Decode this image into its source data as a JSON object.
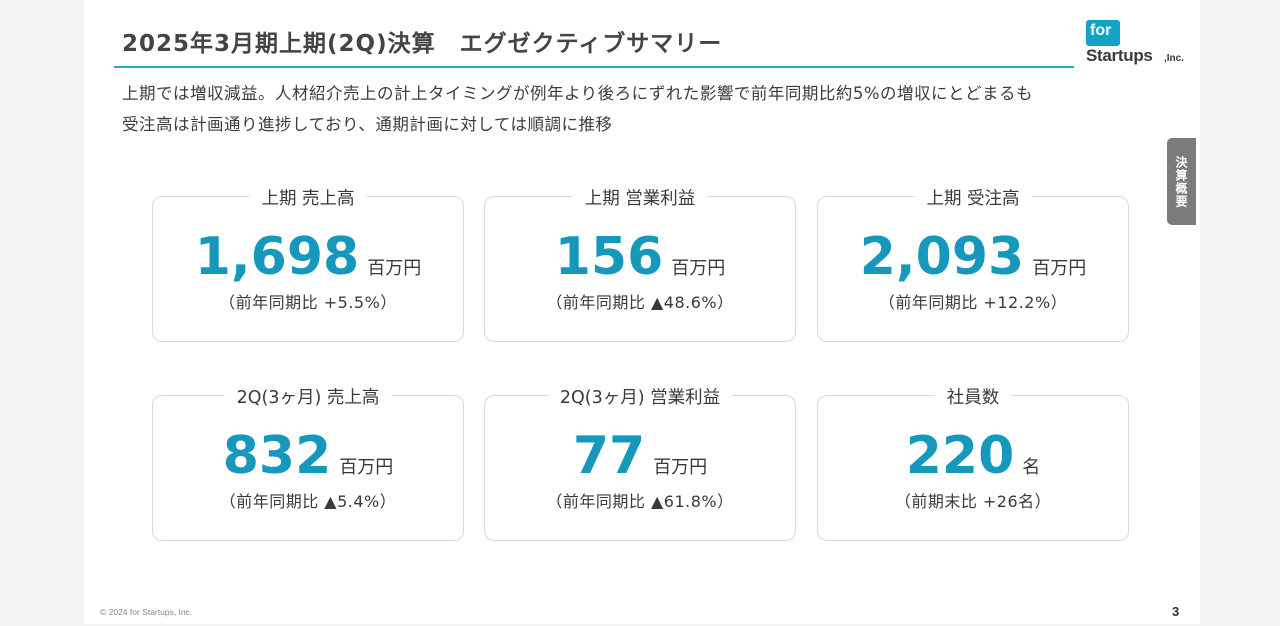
{
  "header": {
    "title": "2025年3月期上期(2Q)決算　エグゼクティブサマリー"
  },
  "logo": {
    "for_text": "for",
    "main_text": "Startups",
    "inc_text": ",Inc."
  },
  "summary": {
    "line1": "上期では増収減益。人材紹介売上の計上タイミングが例年より後ろにずれた影響で前年同期比約5%の増収にとどまるも",
    "line2": "受注高は計画通り進捗しており、通期計画に対しては順調に推移"
  },
  "side_tab": {
    "label": "決算概要"
  },
  "cards": [
    {
      "label": "上期 売上高",
      "value": "1,698",
      "unit": "百万円",
      "note": "（前年同期比 +5.5%）"
    },
    {
      "label": "上期 営業利益",
      "value": "156",
      "unit": "百万円",
      "note": "（前年同期比 ▲48.6%）"
    },
    {
      "label": "上期 受注高",
      "value": "2,093",
      "unit": "百万円",
      "note": "（前年同期比 +12.2%）"
    },
    {
      "label": "2Q(3ヶ月) 売上高",
      "value": "832",
      "unit": "百万円",
      "note": "（前年同期比 ▲5.4%）"
    },
    {
      "label": "2Q(3ヶ月) 営業利益",
      "value": "77",
      "unit": "百万円",
      "note": "（前年同期比 ▲61.8%）"
    },
    {
      "label": "社員数",
      "value": "220",
      "unit": "名",
      "note": "（前期末比 +26名）"
    }
  ],
  "footer": {
    "copyright": "© 2024 for Startups, Inc.",
    "page_number": "3"
  },
  "colors": {
    "accent": "#1698bd",
    "rule": "#2aa6c9",
    "tab": "#7b7b7b"
  }
}
